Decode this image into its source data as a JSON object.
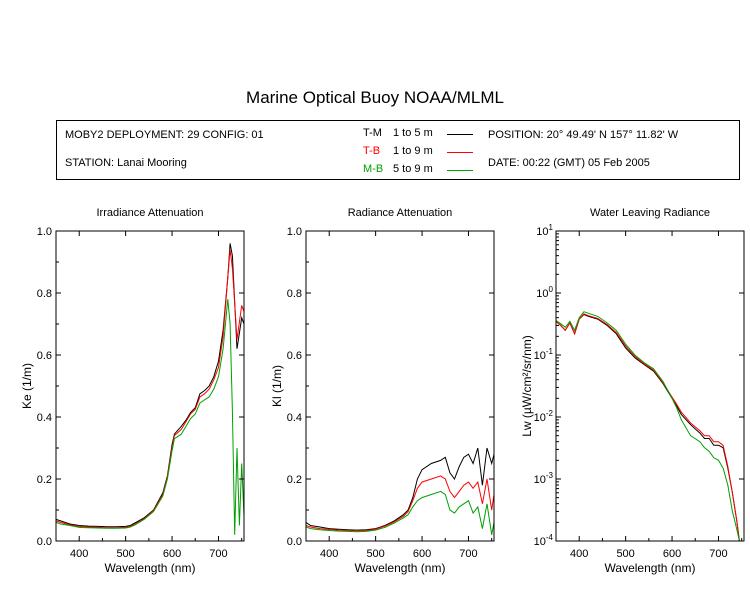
{
  "title": "Marine Optical Buoy NOAA/MLML",
  "info": {
    "deployment": "MOBY2 DEPLOYMENT: 29 CONFIG: 01",
    "station": "STATION: Lanai Mooring",
    "position": "POSITION: 20° 49.49' N   157° 11.82' W",
    "date": "DATE: 00:22 (GMT) 05 Feb 2005",
    "legend": [
      {
        "pair": "T-M",
        "range": "1 to 5  m",
        "color": "#000000"
      },
      {
        "pair": "T-B",
        "range": "1 to 9  m",
        "color": "#ff0000"
      },
      {
        "pair": "M-B",
        "range": "5 to 9  m",
        "color": "#00a000"
      }
    ]
  },
  "chart_data": [
    {
      "type": "line",
      "title": "Irradiance Attenuation",
      "xlabel": "Wavelength (nm)",
      "ylabel": "Ke  (1/m)",
      "xlim": [
        350,
        755
      ],
      "ylim": [
        0,
        1.0
      ],
      "xticks": [
        "400",
        "500",
        "600",
        "700"
      ],
      "yticks": [
        "0.0",
        "0.2",
        "0.4",
        "0.6",
        "0.8",
        "1.0"
      ],
      "series": [
        {
          "name": "T-M",
          "color": "#000000",
          "x": [
            350,
            360,
            380,
            400,
            420,
            440,
            460,
            480,
            500,
            510,
            520,
            540,
            560,
            580,
            590,
            600,
            605,
            620,
            630,
            640,
            650,
            660,
            670,
            680,
            690,
            700,
            710,
            720,
            725,
            730,
            740,
            750,
            755
          ],
          "y": [
            0.07,
            0.065,
            0.055,
            0.05,
            0.048,
            0.047,
            0.046,
            0.046,
            0.047,
            0.05,
            0.058,
            0.075,
            0.1,
            0.155,
            0.21,
            0.31,
            0.345,
            0.37,
            0.39,
            0.415,
            0.43,
            0.475,
            0.485,
            0.5,
            0.53,
            0.58,
            0.68,
            0.85,
            0.96,
            0.92,
            0.62,
            0.72,
            0.7
          ]
        },
        {
          "name": "T-B",
          "color": "#ff0000",
          "x": [
            350,
            360,
            380,
            400,
            420,
            440,
            460,
            480,
            500,
            510,
            520,
            540,
            560,
            580,
            590,
            600,
            605,
            620,
            630,
            640,
            650,
            660,
            670,
            680,
            690,
            700,
            710,
            720,
            725,
            730,
            740,
            750,
            755
          ],
          "y": [
            0.065,
            0.06,
            0.052,
            0.047,
            0.045,
            0.044,
            0.043,
            0.043,
            0.044,
            0.047,
            0.055,
            0.072,
            0.098,
            0.15,
            0.205,
            0.3,
            0.34,
            0.36,
            0.385,
            0.41,
            0.425,
            0.465,
            0.475,
            0.49,
            0.52,
            0.56,
            0.66,
            0.85,
            0.94,
            0.88,
            0.65,
            0.76,
            0.74
          ]
        },
        {
          "name": "M-B",
          "color": "#00a000",
          "x": [
            350,
            360,
            380,
            400,
            420,
            440,
            460,
            480,
            500,
            510,
            520,
            540,
            560,
            580,
            590,
            600,
            605,
            620,
            630,
            640,
            650,
            660,
            670,
            680,
            690,
            700,
            710,
            720,
            725,
            730,
            735,
            740,
            745,
            750,
            755
          ],
          "y": [
            0.06,
            0.055,
            0.05,
            0.044,
            0.043,
            0.042,
            0.041,
            0.041,
            0.042,
            0.045,
            0.052,
            0.07,
            0.095,
            0.145,
            0.2,
            0.29,
            0.33,
            0.345,
            0.37,
            0.395,
            0.41,
            0.445,
            0.455,
            0.465,
            0.49,
            0.53,
            0.62,
            0.78,
            0.7,
            0.42,
            0.02,
            0.3,
            0.05,
            0.25,
            0.08
          ]
        }
      ]
    },
    {
      "type": "line",
      "title": "Radiance Attenuation",
      "xlabel": "Wavelength (nm)",
      "ylabel": "Kl  (1/m)",
      "xlim": [
        350,
        755
      ],
      "ylim": [
        0,
        1.0
      ],
      "xticks": [
        "400",
        "500",
        "600",
        "700"
      ],
      "yticks": [
        "0.0",
        "0.2",
        "0.4",
        "0.6",
        "0.8",
        "1.0"
      ],
      "series": [
        {
          "name": "T-M",
          "color": "#000000",
          "x": [
            350,
            360,
            380,
            400,
            420,
            440,
            460,
            480,
            500,
            520,
            540,
            560,
            570,
            580,
            590,
            600,
            620,
            640,
            650,
            660,
            670,
            680,
            690,
            700,
            710,
            720,
            730,
            740,
            750,
            755
          ],
          "y": [
            0.06,
            0.05,
            0.045,
            0.04,
            0.038,
            0.036,
            0.035,
            0.036,
            0.04,
            0.05,
            0.065,
            0.085,
            0.1,
            0.14,
            0.2,
            0.23,
            0.25,
            0.26,
            0.27,
            0.22,
            0.2,
            0.24,
            0.27,
            0.28,
            0.25,
            0.3,
            0.18,
            0.3,
            0.25,
            0.28
          ]
        },
        {
          "name": "T-B",
          "color": "#ff0000",
          "x": [
            350,
            360,
            380,
            400,
            420,
            440,
            460,
            480,
            500,
            520,
            540,
            560,
            570,
            580,
            590,
            600,
            620,
            640,
            650,
            660,
            670,
            680,
            690,
            700,
            710,
            720,
            730,
            740,
            750,
            755
          ],
          "y": [
            0.05,
            0.045,
            0.04,
            0.037,
            0.035,
            0.034,
            0.033,
            0.034,
            0.038,
            0.048,
            0.062,
            0.08,
            0.095,
            0.13,
            0.17,
            0.19,
            0.2,
            0.21,
            0.2,
            0.16,
            0.14,
            0.16,
            0.18,
            0.19,
            0.17,
            0.19,
            0.12,
            0.2,
            0.1,
            0.15
          ]
        },
        {
          "name": "M-B",
          "color": "#00a000",
          "x": [
            350,
            360,
            380,
            400,
            420,
            440,
            460,
            480,
            500,
            520,
            540,
            560,
            570,
            580,
            590,
            600,
            620,
            640,
            650,
            660,
            670,
            680,
            690,
            700,
            710,
            720,
            730,
            740,
            750,
            755
          ],
          "y": [
            0.045,
            0.04,
            0.036,
            0.034,
            0.032,
            0.031,
            0.03,
            0.031,
            0.035,
            0.044,
            0.058,
            0.075,
            0.085,
            0.11,
            0.13,
            0.14,
            0.15,
            0.16,
            0.15,
            0.1,
            0.09,
            0.11,
            0.12,
            0.13,
            0.09,
            0.11,
            0.04,
            0.12,
            0.02,
            0.06
          ]
        }
      ]
    },
    {
      "type": "line",
      "title": "Water Leaving Radiance",
      "xlabel": "Wavelength (nm)",
      "ylabel": "Lw  (µW/cm²/sr/nm)",
      "xlim": [
        350,
        755
      ],
      "ylim": [
        0.0001,
        10
      ],
      "log_y": true,
      "xticks": [
        "400",
        "500",
        "600",
        "700"
      ],
      "yticks": [
        "10^-4",
        "10^-3",
        "10^-2",
        "10^-1",
        "10^0",
        "10^1"
      ],
      "series": [
        {
          "name": "T-M",
          "color": "#000000",
          "x": [
            350,
            360,
            370,
            380,
            390,
            400,
            410,
            420,
            440,
            460,
            480,
            500,
            520,
            540,
            560,
            580,
            600,
            610,
            620,
            640,
            660,
            670,
            680,
            690,
            700,
            710,
            720,
            730,
            740,
            745
          ],
          "y": [
            0.35,
            0.3,
            0.25,
            0.33,
            0.22,
            0.38,
            0.45,
            0.42,
            0.38,
            0.3,
            0.22,
            0.13,
            0.09,
            0.07,
            0.055,
            0.035,
            0.02,
            0.015,
            0.011,
            0.0075,
            0.0055,
            0.0045,
            0.0045,
            0.0035,
            0.0035,
            0.0032,
            0.0015,
            0.0006,
            0.0002,
            0.0001
          ]
        },
        {
          "name": "T-B",
          "color": "#ff0000",
          "x": [
            350,
            360,
            370,
            380,
            390,
            400,
            410,
            420,
            440,
            460,
            480,
            500,
            520,
            540,
            560,
            580,
            600,
            610,
            620,
            640,
            660,
            670,
            680,
            690,
            700,
            710,
            720,
            730,
            740,
            745
          ],
          "y": [
            0.35,
            0.3,
            0.25,
            0.33,
            0.22,
            0.38,
            0.46,
            0.43,
            0.39,
            0.31,
            0.23,
            0.14,
            0.095,
            0.072,
            0.057,
            0.036,
            0.021,
            0.016,
            0.012,
            0.008,
            0.006,
            0.005,
            0.005,
            0.004,
            0.004,
            0.0035,
            0.0016,
            0.0006,
            0.0002,
            0.0001
          ]
        },
        {
          "name": "M-B",
          "color": "#00a000",
          "x": [
            350,
            360,
            370,
            380,
            390,
            400,
            410,
            420,
            440,
            460,
            480,
            500,
            520,
            540,
            560,
            580,
            600,
            610,
            620,
            640,
            660,
            670,
            680,
            690,
            700,
            710,
            720,
            730,
            740,
            745
          ],
          "y": [
            0.36,
            0.32,
            0.28,
            0.35,
            0.25,
            0.4,
            0.5,
            0.47,
            0.42,
            0.33,
            0.25,
            0.15,
            0.1,
            0.075,
            0.06,
            0.038,
            0.02,
            0.014,
            0.009,
            0.005,
            0.004,
            0.0032,
            0.0028,
            0.0022,
            0.002,
            0.0015,
            0.0008,
            0.0003,
            0.00015,
            0.0001
          ]
        }
      ]
    }
  ]
}
